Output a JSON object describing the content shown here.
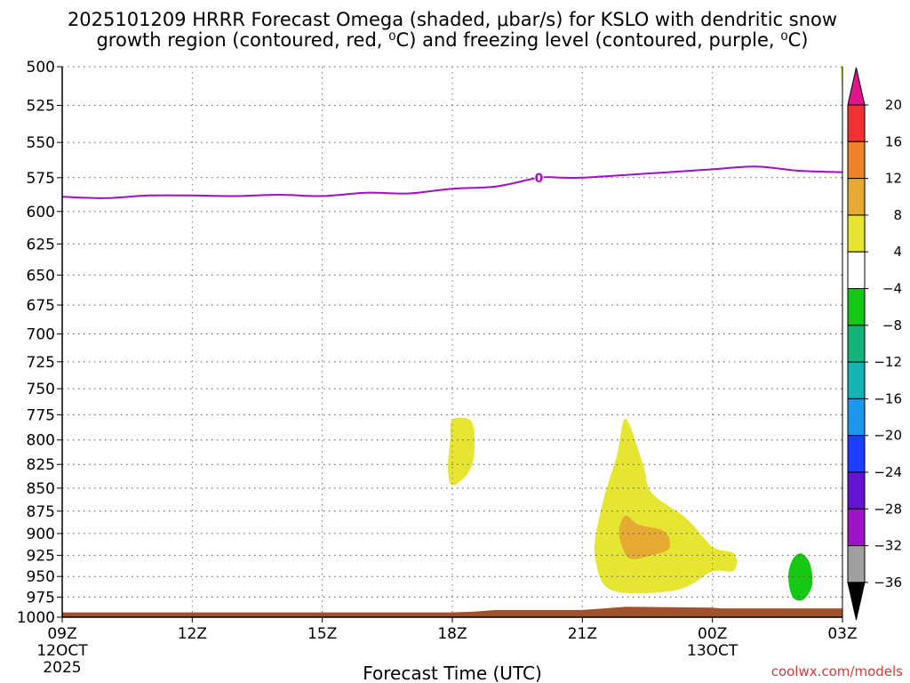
{
  "title_line1": "2025101209 HRRR Forecast Omega (shaded, μbar/s) for KSLO with dendritic snow",
  "title_line2": "growth region (contoured, red, ⁰C) and freezing level (contoured, purple, ⁰C)",
  "credit": "coolwx.com/models",
  "chart_data": {
    "type": "contour",
    "title": "2025101209 HRRR Forecast Omega (shaded, μbar/s) for KSLO with dendritic snow growth region (contoured, red, ⁰C) and freezing level (contoured, purple, ⁰C)",
    "xlabel": "Forecast Time (UTC)",
    "x_range_hours": [
      0,
      18
    ],
    "xticks": [
      {
        "hour": 0,
        "label": "09Z",
        "date": "12OCT",
        "year": "2025"
      },
      {
        "hour": 3,
        "label": "12Z",
        "date": "",
        "year": ""
      },
      {
        "hour": 6,
        "label": "15Z",
        "date": "",
        "year": ""
      },
      {
        "hour": 9,
        "label": "18Z",
        "date": "",
        "year": ""
      },
      {
        "hour": 12,
        "label": "21Z",
        "date": "",
        "year": ""
      },
      {
        "hour": 15,
        "label": "00Z",
        "date": "13OCT",
        "year": ""
      },
      {
        "hour": 18,
        "label": "03Z",
        "date": "",
        "year": ""
      }
    ],
    "y_axis": "pressure (hPa), log scale, inverted",
    "y_range": [
      500,
      1000
    ],
    "yticks": [
      500,
      525,
      550,
      575,
      600,
      625,
      650,
      675,
      700,
      725,
      750,
      775,
      800,
      825,
      850,
      875,
      900,
      925,
      950,
      975,
      1000
    ],
    "grid": true,
    "colorbar": {
      "levels": [
        20,
        16,
        12,
        8,
        4,
        -4,
        -8,
        -12,
        -16,
        -20,
        -24,
        -28,
        -32,
        -36
      ],
      "colors": [
        "#e0158a",
        "#f03232",
        "#f08228",
        "#e6aa32",
        "#e6e632",
        "#ffffff",
        "#14c814",
        "#14b478",
        "#14b4b4",
        "#1e96f0",
        "#1e3cff",
        "#6414d2",
        "#a014c8",
        "#a0a0a0",
        "#000000"
      ]
    },
    "freezing_level": {
      "label": "0",
      "color": "#a010c8",
      "points": [
        [
          0,
          589
        ],
        [
          1,
          590
        ],
        [
          2,
          588
        ],
        [
          3,
          588
        ],
        [
          4,
          588.5
        ],
        [
          5,
          587.5
        ],
        [
          6,
          588.5
        ],
        [
          7,
          586
        ],
        [
          8,
          586.5
        ],
        [
          9,
          583
        ],
        [
          10,
          581.5
        ],
        [
          11,
          575
        ],
        [
          11.5,
          575
        ],
        [
          12,
          575
        ],
        [
          13,
          573
        ],
        [
          14,
          571
        ],
        [
          15,
          569
        ],
        [
          16,
          567
        ],
        [
          17,
          570
        ],
        [
          18,
          571
        ]
      ]
    },
    "omega_regions": [
      {
        "level": "4 to 8",
        "color": "#e6e632",
        "points": [
          [
            9.0,
            780
          ],
          [
            9.45,
            782
          ],
          [
            9.5,
            815
          ],
          [
            9.35,
            835
          ],
          [
            9.0,
            847
          ],
          [
            8.9,
            830
          ],
          [
            8.95,
            800
          ]
        ]
      },
      {
        "level": "4 to 8",
        "color": "#e6e632",
        "points": [
          [
            13.0,
            779
          ],
          [
            13.4,
            825
          ],
          [
            13.6,
            855
          ],
          [
            14.4,
            883
          ],
          [
            15.0,
            915
          ],
          [
            15.5,
            923
          ],
          [
            15.5,
            943
          ],
          [
            15.0,
            944
          ],
          [
            14.5,
            960
          ],
          [
            14.0,
            968
          ],
          [
            13.0,
            970
          ],
          [
            12.5,
            960
          ],
          [
            12.3,
            930
          ],
          [
            12.3,
            905
          ],
          [
            12.5,
            860
          ],
          [
            12.8,
            815
          ]
        ]
      },
      {
        "level": "8 to 12",
        "color": "#e6aa32",
        "points": [
          [
            13.0,
            880
          ],
          [
            13.3,
            890
          ],
          [
            13.9,
            898
          ],
          [
            14.0,
            917
          ],
          [
            13.6,
            925
          ],
          [
            13.1,
            929
          ],
          [
            12.9,
            912
          ],
          [
            12.85,
            895
          ]
        ]
      },
      {
        "level": "4 to 8",
        "color": "#e6e632",
        "points": [
          [
            17.97,
            500
          ],
          [
            18.0,
            500
          ],
          [
            18.0,
            518
          ],
          [
            17.97,
            505
          ]
        ]
      },
      {
        "level": "-4 to -8",
        "color": "#14c814",
        "points": [
          [
            17.05,
            923
          ],
          [
            17.25,
            935
          ],
          [
            17.3,
            960
          ],
          [
            17.1,
            978
          ],
          [
            16.85,
            975
          ],
          [
            16.75,
            950
          ],
          [
            16.85,
            930
          ]
        ]
      }
    ],
    "surface_terrain": {
      "color": "#a0522d",
      "points": [
        [
          0,
          994
        ],
        [
          9,
          994
        ],
        [
          9.5,
          993
        ],
        [
          10,
          991
        ],
        [
          12,
          991
        ],
        [
          12.5,
          989
        ],
        [
          13,
          987
        ],
        [
          15,
          988
        ],
        [
          15.2,
          989
        ],
        [
          18,
          989
        ]
      ]
    }
  }
}
